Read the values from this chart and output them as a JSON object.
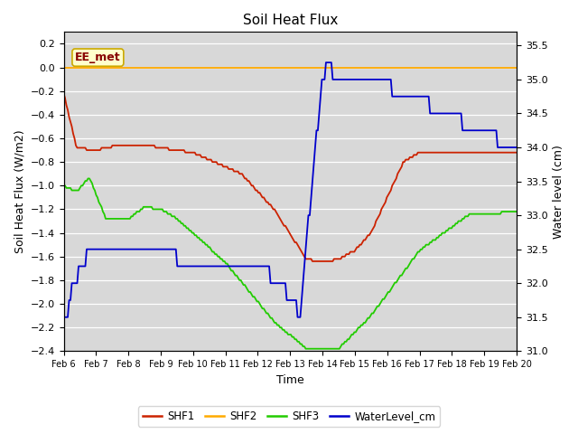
{
  "title": "Soil Heat Flux",
  "xlabel": "Time",
  "ylabel_left": "Soil Heat Flux (W/m2)",
  "ylabel_right": "Water level (cm)",
  "annotation": "EE_met",
  "plot_bg_color": "#d8d8d8",
  "ylim_left": [
    -2.4,
    0.3
  ],
  "ylim_right": [
    31.0,
    35.7
  ],
  "yticks_left": [
    -2.4,
    -2.2,
    -2.0,
    -1.8,
    -1.6,
    -1.4,
    -1.2,
    -1.0,
    -0.8,
    -0.6,
    -0.4,
    -0.2,
    0.0,
    0.2
  ],
  "yticks_right": [
    31.0,
    31.5,
    32.0,
    32.5,
    33.0,
    33.5,
    34.0,
    34.5,
    35.0,
    35.5
  ],
  "xtick_labels": [
    "Feb 6",
    "Feb 7",
    "Feb 8",
    "Feb 9",
    "Feb 10",
    "Feb 11",
    "Feb 12",
    "Feb 13",
    "Feb 14",
    "Feb 15",
    "Feb 16",
    "Feb 17",
    "Feb 18",
    "Feb 19",
    "Feb 20"
  ],
  "legend_labels": [
    "SHF1",
    "SHF2",
    "SHF3",
    "WaterLevel_cm"
  ],
  "line_colors": [
    "#cc2200",
    "#ffaa00",
    "#22cc00",
    "#0000cc"
  ],
  "annotation_bg": "#ffffcc",
  "annotation_text_color": "#880000",
  "annotation_border_color": "#ccaa00",
  "grid_color": "#ffffff",
  "title_fontsize": 11,
  "label_fontsize": 9,
  "tick_fontsize": 8,
  "xtick_fontsize": 7
}
